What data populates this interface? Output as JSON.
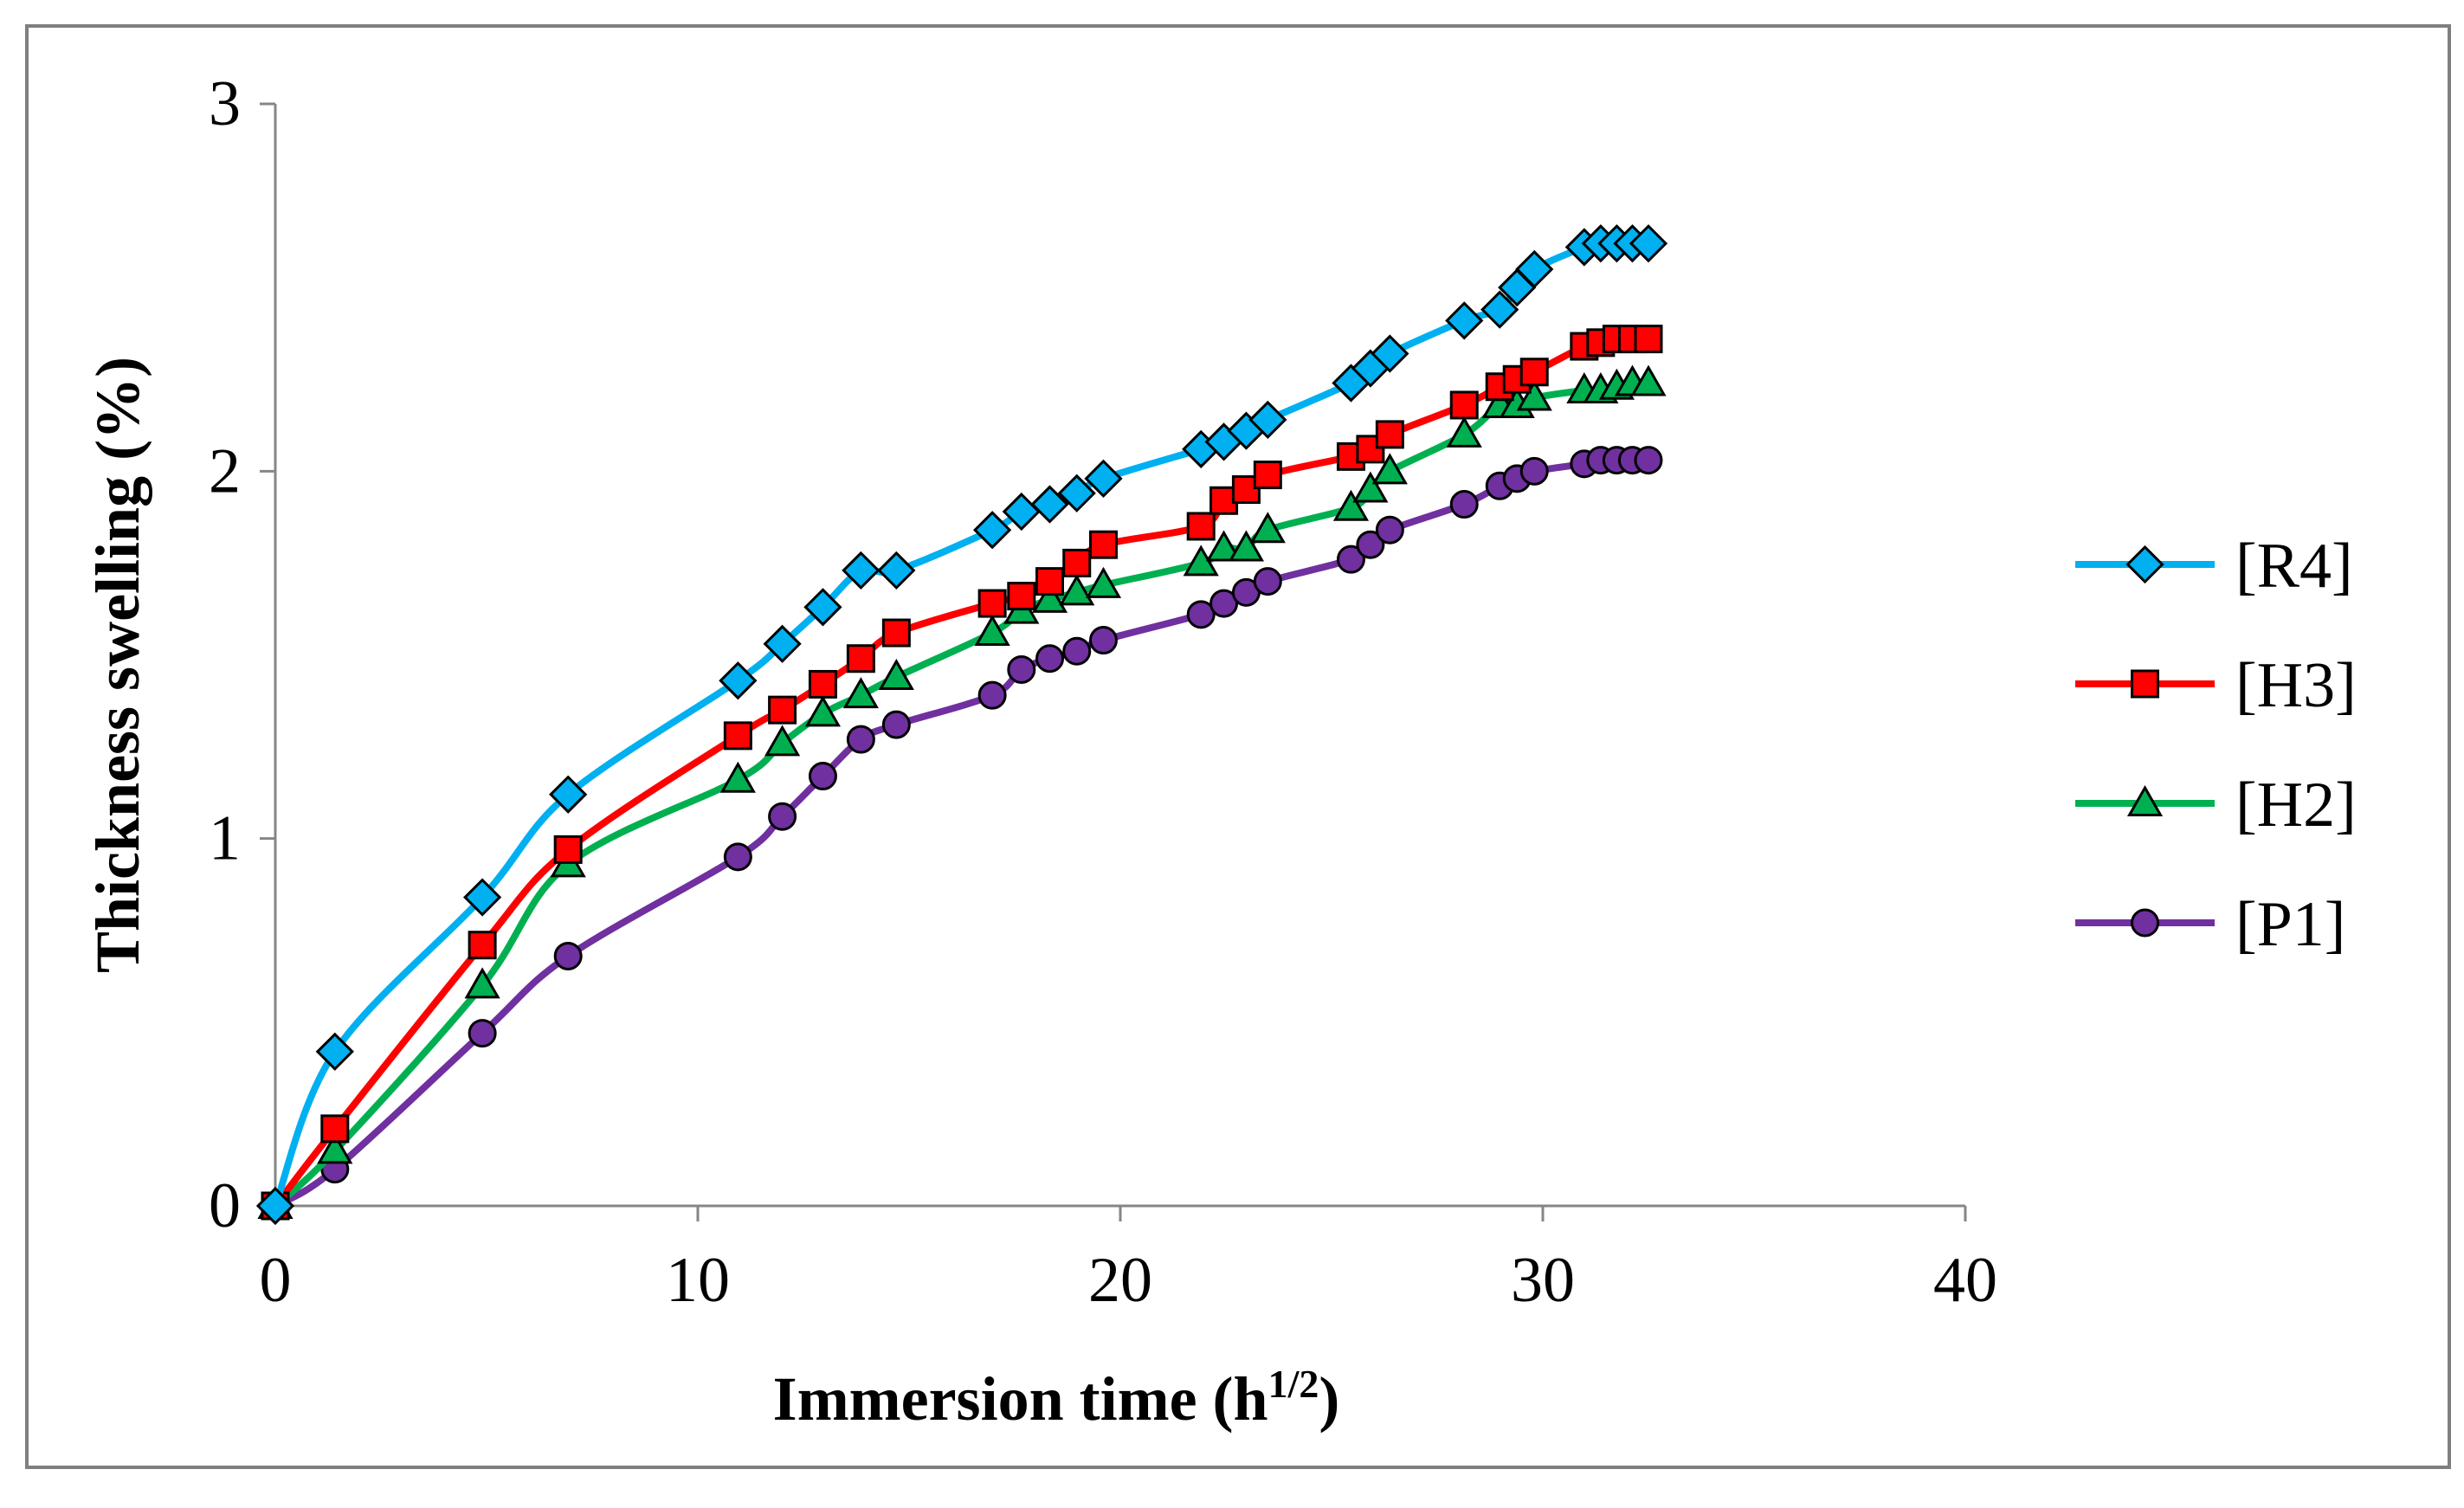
{
  "chart_data": {
    "type": "line",
    "title": "",
    "xlabel": "Immersion time (h",
    "xlabel_superscript": "1/2",
    "xlabel_close": ")",
    "ylabel": "Thickness swelling (%)",
    "xlim": [
      0,
      40
    ],
    "ylim": [
      0,
      3
    ],
    "xticks": [
      0,
      10,
      20,
      30,
      40
    ],
    "yticks": [
      0,
      1,
      2,
      3
    ],
    "xtick_labels": [
      "0",
      "10",
      "20",
      "30",
      "40"
    ],
    "ytick_labels": [
      "0",
      "1",
      "2",
      "3"
    ],
    "grid": false,
    "legend_position": "right",
    "x": [
      0,
      1.41,
      4.9,
      6.93,
      10.95,
      12.0,
      12.96,
      13.86,
      14.7,
      16.97,
      17.66,
      18.33,
      18.97,
      19.6,
      21.91,
      22.45,
      22.98,
      23.49,
      25.46,
      25.92,
      26.38,
      28.14,
      28.98,
      29.39,
      29.8,
      30.98,
      31.37,
      31.75,
      32.12,
      32.5
    ],
    "series": [
      {
        "name": "[R4]",
        "color": "#00B0F0",
        "marker": "diamond",
        "values": [
          0,
          0.42,
          0.84,
          1.12,
          1.43,
          1.53,
          1.63,
          1.73,
          1.73,
          1.84,
          1.89,
          1.91,
          1.94,
          1.98,
          2.06,
          2.08,
          2.11,
          2.14,
          2.24,
          2.28,
          2.32,
          2.41,
          2.44,
          2.5,
          2.55,
          2.61,
          2.62,
          2.62,
          2.62,
          2.62
        ]
      },
      {
        "name": "[H3]",
        "color": "#FF0000",
        "marker": "square",
        "values": [
          0,
          0.21,
          0.71,
          0.97,
          1.28,
          1.35,
          1.42,
          1.49,
          1.56,
          1.64,
          1.66,
          1.7,
          1.75,
          1.8,
          1.85,
          1.92,
          1.95,
          1.99,
          2.04,
          2.06,
          2.1,
          2.18,
          2.23,
          2.25,
          2.27,
          2.34,
          2.35,
          2.36,
          2.36,
          2.36
        ]
      },
      {
        "name": "[H2]",
        "color": "#00B050",
        "marker": "triangle",
        "values": [
          0,
          0.15,
          0.6,
          0.93,
          1.16,
          1.26,
          1.34,
          1.39,
          1.44,
          1.56,
          1.62,
          1.65,
          1.67,
          1.69,
          1.75,
          1.79,
          1.79,
          1.84,
          1.9,
          1.95,
          2.0,
          2.1,
          2.18,
          2.18,
          2.2,
          2.22,
          2.22,
          2.23,
          2.24,
          2.24
        ]
      },
      {
        "name": "[P1]",
        "color": "#7030A0",
        "marker": "circle",
        "values": [
          0,
          0.1,
          0.47,
          0.68,
          0.95,
          1.06,
          1.17,
          1.27,
          1.31,
          1.39,
          1.46,
          1.49,
          1.51,
          1.54,
          1.61,
          1.64,
          1.67,
          1.7,
          1.76,
          1.8,
          1.84,
          1.91,
          1.96,
          1.98,
          2.0,
          2.02,
          2.03,
          2.03,
          2.03,
          2.03
        ]
      }
    ]
  }
}
